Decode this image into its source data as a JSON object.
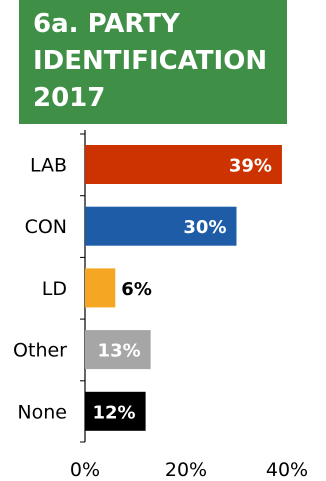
{
  "header": {
    "title_line1": "6a. PARTY",
    "title_line2": "IDENTIFICATION",
    "title_line3": "2017",
    "background_color": "#3f8f47"
  },
  "chart_data": {
    "type": "bar",
    "orientation": "horizontal",
    "title": "6a. PARTY IDENTIFICATION 2017",
    "categories": [
      "LAB",
      "CON",
      "LD",
      "Other",
      "None"
    ],
    "values": [
      39,
      30,
      6,
      13,
      12
    ],
    "value_labels": [
      "39%",
      "30%",
      "6%",
      "13%",
      "12%"
    ],
    "colors": [
      "#cc3300",
      "#1f5ca8",
      "#f5a623",
      "#a6a6a6",
      "#000000"
    ],
    "label_inside": [
      true,
      true,
      false,
      true,
      true
    ],
    "xlim": [
      0,
      40
    ],
    "x_ticks": [
      0,
      20,
      40
    ],
    "x_tick_labels": [
      "0%",
      "20%",
      "40%"
    ],
    "xlabel": "",
    "ylabel": "",
    "grid": false
  }
}
